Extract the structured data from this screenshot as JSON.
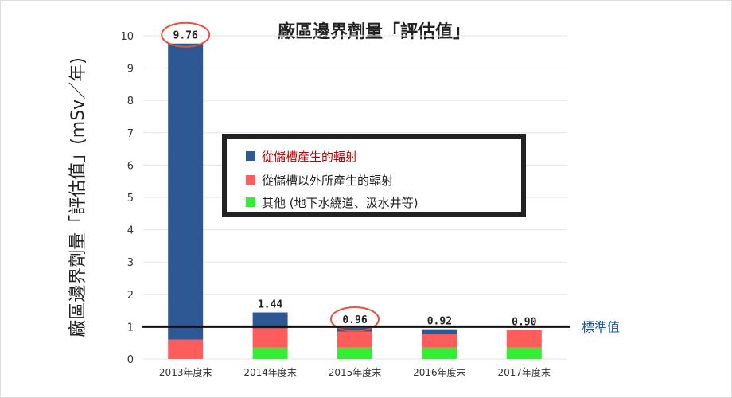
{
  "chart_data": {
    "type": "bar",
    "stacked": true,
    "title": "廠區邊界劑量「評估值」",
    "ylabel": "廠區邊界劑量「評估值」(mSv／年)",
    "xlabel": "",
    "ylim": [
      0,
      10
    ],
    "yticks": [
      0,
      1,
      2,
      3,
      4,
      5,
      6,
      7,
      8,
      9,
      10
    ],
    "grid": true,
    "legend_position": "center",
    "categories": [
      "2013年度末",
      "2014年度末",
      "2015年度末",
      "2016年度末",
      "2017年度末"
    ],
    "series": [
      {
        "name": "其他 (地下水繞道、汲水井等)",
        "color": "#33ee33",
        "values": [
          0,
          0.35,
          0.35,
          0.35,
          0.35
        ]
      },
      {
        "name": "從儲槽以外所產生的輻射",
        "color": "#ff5c5c",
        "values": [
          0.6,
          0.6,
          0.5,
          0.42,
          0.55
        ]
      },
      {
        "name": "從儲槽產生的輻射",
        "color": "#2e5894",
        "values": [
          9.16,
          0.49,
          0.11,
          0.15,
          0.0
        ]
      }
    ],
    "totals": [
      "9.76",
      "1.44",
      "0.96",
      "0.92",
      "0.90"
    ],
    "highlighted_totals": [
      0,
      2
    ],
    "reference_line": {
      "value": 1,
      "label": "標準值",
      "color": "#1a4d99"
    },
    "legend_title_color": "#c00000"
  }
}
